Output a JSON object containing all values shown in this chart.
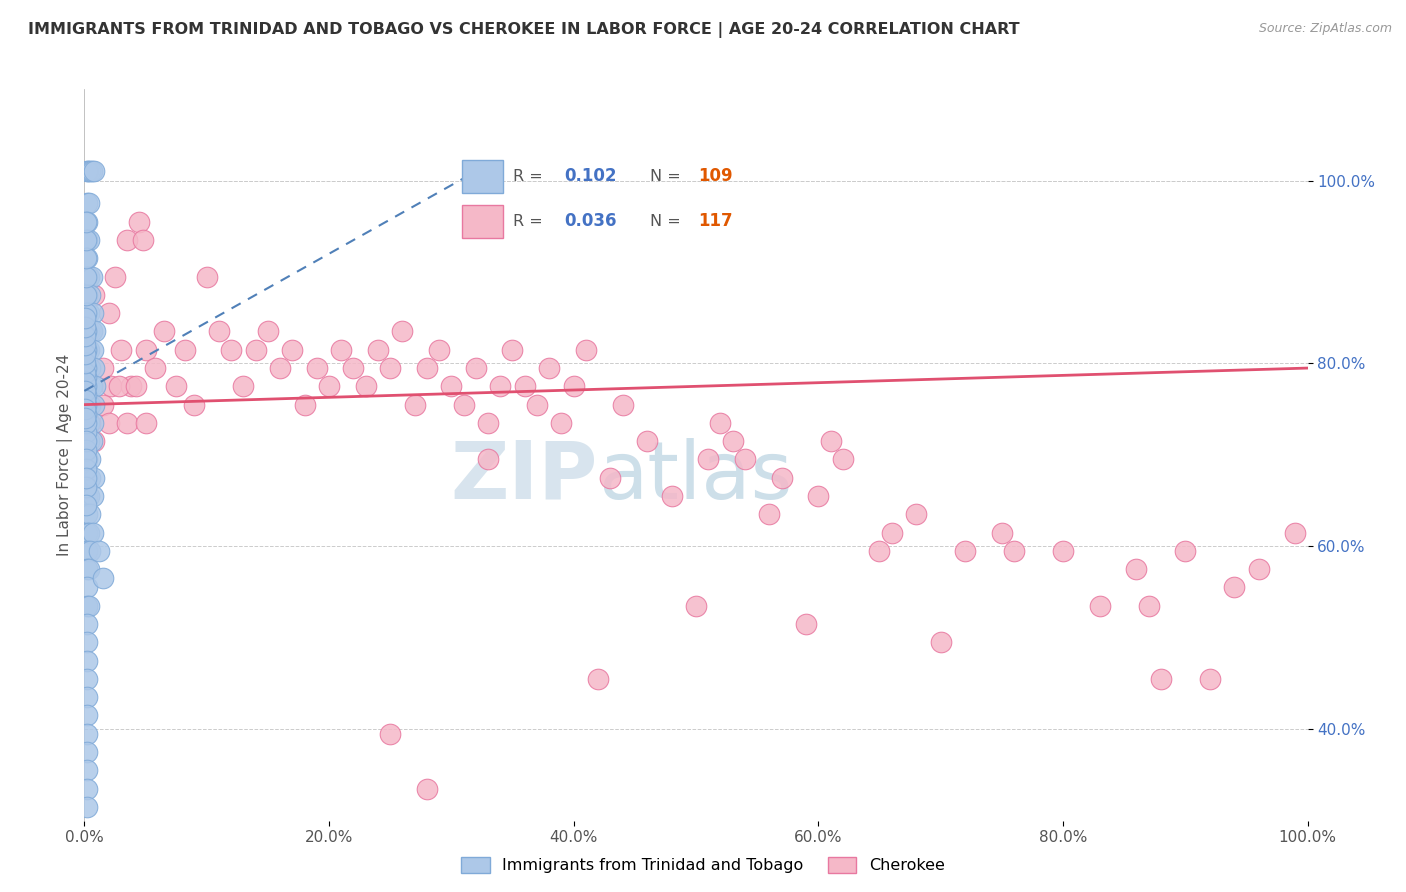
{
  "title": "IMMIGRANTS FROM TRINIDAD AND TOBAGO VS CHEROKEE IN LABOR FORCE | AGE 20-24 CORRELATION CHART",
  "source_text": "Source: ZipAtlas.com",
  "ylabel": "In Labor Force | Age 20-24",
  "xticklabels": [
    "0.0%",
    "20.0%",
    "40.0%",
    "60.0%",
    "80.0%",
    "100.0%"
  ],
  "yticklabels": [
    "40.0%",
    "60.0%",
    "80.0%",
    "100.0%"
  ],
  "xlim": [
    0.0,
    1.0
  ],
  "ylim": [
    0.3,
    1.1
  ],
  "blue_R": 0.102,
  "blue_N": 109,
  "pink_R": 0.036,
  "pink_N": 117,
  "blue_color": "#adc8e8",
  "pink_color": "#f5b8c8",
  "blue_edge": "#80aad8",
  "pink_edge": "#e878a0",
  "trend_blue_color": "#5080b8",
  "trend_pink_color": "#e05070",
  "watermark_zip": "ZIP",
  "watermark_atlas": "atlas",
  "legend_label_blue": "Immigrants from Trinidad and Tobago",
  "legend_label_pink": "Cherokee",
  "blue_dots": [
    [
      0.002,
      1.01
    ],
    [
      0.003,
      1.01
    ],
    [
      0.005,
      1.01
    ],
    [
      0.006,
      1.01
    ],
    [
      0.008,
      1.01
    ],
    [
      0.002,
      0.975
    ],
    [
      0.004,
      0.975
    ],
    [
      0.002,
      0.955
    ],
    [
      0.002,
      0.935
    ],
    [
      0.004,
      0.935
    ],
    [
      0.002,
      0.915
    ],
    [
      0.002,
      0.895
    ],
    [
      0.004,
      0.895
    ],
    [
      0.006,
      0.895
    ],
    [
      0.002,
      0.875
    ],
    [
      0.005,
      0.875
    ],
    [
      0.002,
      0.855
    ],
    [
      0.004,
      0.855
    ],
    [
      0.007,
      0.855
    ],
    [
      0.002,
      0.835
    ],
    [
      0.004,
      0.835
    ],
    [
      0.006,
      0.835
    ],
    [
      0.009,
      0.835
    ],
    [
      0.002,
      0.815
    ],
    [
      0.004,
      0.815
    ],
    [
      0.007,
      0.815
    ],
    [
      0.002,
      0.795
    ],
    [
      0.005,
      0.795
    ],
    [
      0.008,
      0.795
    ],
    [
      0.002,
      0.775
    ],
    [
      0.004,
      0.775
    ],
    [
      0.006,
      0.775
    ],
    [
      0.009,
      0.775
    ],
    [
      0.002,
      0.755
    ],
    [
      0.005,
      0.755
    ],
    [
      0.008,
      0.755
    ],
    [
      0.002,
      0.735
    ],
    [
      0.004,
      0.735
    ],
    [
      0.007,
      0.735
    ],
    [
      0.002,
      0.715
    ],
    [
      0.004,
      0.715
    ],
    [
      0.006,
      0.715
    ],
    [
      0.002,
      0.695
    ],
    [
      0.005,
      0.695
    ],
    [
      0.002,
      0.675
    ],
    [
      0.005,
      0.675
    ],
    [
      0.008,
      0.675
    ],
    [
      0.002,
      0.655
    ],
    [
      0.004,
      0.655
    ],
    [
      0.007,
      0.655
    ],
    [
      0.002,
      0.635
    ],
    [
      0.005,
      0.635
    ],
    [
      0.002,
      0.615
    ],
    [
      0.004,
      0.615
    ],
    [
      0.007,
      0.615
    ],
    [
      0.002,
      0.595
    ],
    [
      0.005,
      0.595
    ],
    [
      0.002,
      0.575
    ],
    [
      0.004,
      0.575
    ],
    [
      0.002,
      0.555
    ],
    [
      0.002,
      0.535
    ],
    [
      0.004,
      0.535
    ],
    [
      0.002,
      0.515
    ],
    [
      0.002,
      0.495
    ],
    [
      0.002,
      0.475
    ],
    [
      0.002,
      0.455
    ],
    [
      0.002,
      0.435
    ],
    [
      0.002,
      0.415
    ],
    [
      0.002,
      0.395
    ],
    [
      0.002,
      0.375
    ],
    [
      0.002,
      0.355
    ],
    [
      0.002,
      0.335
    ],
    [
      0.002,
      0.315
    ],
    [
      0.001,
      0.785
    ],
    [
      0.001,
      0.765
    ],
    [
      0.001,
      0.745
    ],
    [
      0.001,
      0.725
    ],
    [
      0.001,
      0.705
    ],
    [
      0.001,
      0.685
    ],
    [
      0.001,
      0.665
    ],
    [
      0.001,
      0.645
    ],
    [
      0.001,
      0.795
    ],
    [
      0.001,
      0.775
    ],
    [
      0.001,
      0.755
    ],
    [
      0.001,
      0.735
    ],
    [
      0.001,
      0.715
    ],
    [
      0.001,
      0.695
    ],
    [
      0.001,
      0.675
    ],
    [
      0.001,
      0.815
    ],
    [
      0.001,
      0.835
    ],
    [
      0.001,
      0.855
    ],
    [
      0.001,
      0.875
    ],
    [
      0.001,
      0.895
    ],
    [
      0.001,
      0.915
    ],
    [
      0.001,
      0.935
    ],
    [
      0.001,
      0.955
    ],
    [
      0.0005,
      0.79
    ],
    [
      0.0005,
      0.78
    ],
    [
      0.0005,
      0.77
    ],
    [
      0.0005,
      0.76
    ],
    [
      0.0005,
      0.75
    ],
    [
      0.0005,
      0.74
    ],
    [
      0.0005,
      0.8
    ],
    [
      0.0005,
      0.81
    ],
    [
      0.0005,
      0.82
    ],
    [
      0.0005,
      0.83
    ],
    [
      0.0005,
      0.84
    ],
    [
      0.0005,
      0.85
    ],
    [
      0.012,
      0.595
    ],
    [
      0.015,
      0.565
    ]
  ],
  "pink_dots": [
    [
      0.008,
      0.875
    ],
    [
      0.02,
      0.855
    ],
    [
      0.025,
      0.895
    ],
    [
      0.035,
      0.935
    ],
    [
      0.045,
      0.955
    ],
    [
      0.048,
      0.935
    ],
    [
      0.015,
      0.795
    ],
    [
      0.022,
      0.775
    ],
    [
      0.03,
      0.815
    ],
    [
      0.038,
      0.775
    ],
    [
      0.05,
      0.815
    ],
    [
      0.058,
      0.795
    ],
    [
      0.065,
      0.835
    ],
    [
      0.075,
      0.775
    ],
    [
      0.082,
      0.815
    ],
    [
      0.09,
      0.755
    ],
    [
      0.015,
      0.755
    ],
    [
      0.02,
      0.735
    ],
    [
      0.028,
      0.775
    ],
    [
      0.035,
      0.735
    ],
    [
      0.042,
      0.775
    ],
    [
      0.05,
      0.735
    ],
    [
      0.1,
      0.895
    ],
    [
      0.11,
      0.835
    ],
    [
      0.12,
      0.815
    ],
    [
      0.13,
      0.775
    ],
    [
      0.14,
      0.815
    ],
    [
      0.15,
      0.835
    ],
    [
      0.16,
      0.795
    ],
    [
      0.17,
      0.815
    ],
    [
      0.18,
      0.755
    ],
    [
      0.19,
      0.795
    ],
    [
      0.2,
      0.775
    ],
    [
      0.21,
      0.815
    ],
    [
      0.22,
      0.795
    ],
    [
      0.23,
      0.775
    ],
    [
      0.24,
      0.815
    ],
    [
      0.25,
      0.795
    ],
    [
      0.26,
      0.835
    ],
    [
      0.27,
      0.755
    ],
    [
      0.28,
      0.795
    ],
    [
      0.29,
      0.815
    ],
    [
      0.3,
      0.775
    ],
    [
      0.31,
      0.755
    ],
    [
      0.32,
      0.795
    ],
    [
      0.33,
      0.735
    ],
    [
      0.34,
      0.775
    ],
    [
      0.35,
      0.815
    ],
    [
      0.36,
      0.775
    ],
    [
      0.37,
      0.755
    ],
    [
      0.38,
      0.795
    ],
    [
      0.39,
      0.735
    ],
    [
      0.4,
      0.775
    ],
    [
      0.41,
      0.815
    ],
    [
      0.43,
      0.675
    ],
    [
      0.44,
      0.755
    ],
    [
      0.46,
      0.715
    ],
    [
      0.48,
      0.655
    ],
    [
      0.5,
      0.535
    ],
    [
      0.51,
      0.695
    ],
    [
      0.52,
      0.735
    ],
    [
      0.53,
      0.715
    ],
    [
      0.54,
      0.695
    ],
    [
      0.56,
      0.635
    ],
    [
      0.57,
      0.675
    ],
    [
      0.59,
      0.515
    ],
    [
      0.6,
      0.655
    ],
    [
      0.61,
      0.715
    ],
    [
      0.62,
      0.695
    ],
    [
      0.65,
      0.595
    ],
    [
      0.66,
      0.615
    ],
    [
      0.68,
      0.635
    ],
    [
      0.7,
      0.495
    ],
    [
      0.72,
      0.595
    ],
    [
      0.75,
      0.615
    ],
    [
      0.76,
      0.595
    ],
    [
      0.8,
      0.595
    ],
    [
      0.83,
      0.535
    ],
    [
      0.86,
      0.575
    ],
    [
      0.87,
      0.535
    ],
    [
      0.88,
      0.455
    ],
    [
      0.9,
      0.595
    ],
    [
      0.92,
      0.455
    ],
    [
      0.94,
      0.555
    ],
    [
      0.96,
      0.575
    ],
    [
      0.99,
      0.615
    ],
    [
      0.25,
      0.395
    ],
    [
      0.28,
      0.335
    ],
    [
      0.33,
      0.695
    ],
    [
      0.42,
      0.455
    ],
    [
      0.005,
      0.735
    ],
    [
      0.008,
      0.715
    ]
  ]
}
